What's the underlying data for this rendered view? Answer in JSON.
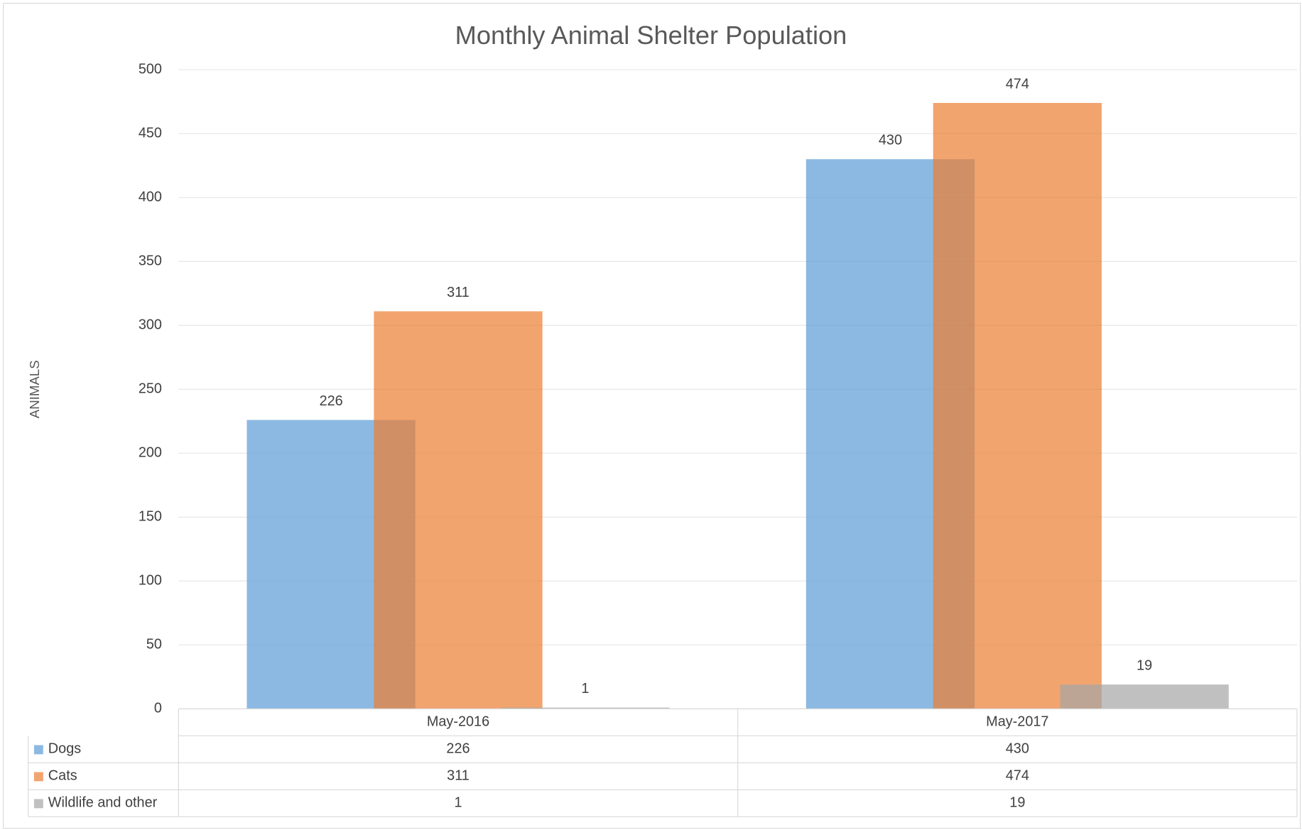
{
  "chart_data": {
    "type": "bar",
    "title": "Monthly Animal Shelter Population",
    "y_label": "ANIMALS",
    "categories": [
      "May-2016",
      "May-2017"
    ],
    "series": [
      {
        "name": "Dogs",
        "color": "#5b9bd5",
        "values": [
          226,
          430
        ]
      },
      {
        "name": "Cats",
        "color": "#ed7d31",
        "values": [
          311,
          474
        ]
      },
      {
        "name": "Wildlife and other",
        "color": "#a5a5a5",
        "values": [
          1,
          19
        ]
      }
    ],
    "ylim": [
      0,
      500
    ],
    "yticks": [
      0,
      50,
      100,
      150,
      200,
      250,
      300,
      350,
      400,
      450,
      500
    ],
    "grid": true,
    "data_table": true
  }
}
